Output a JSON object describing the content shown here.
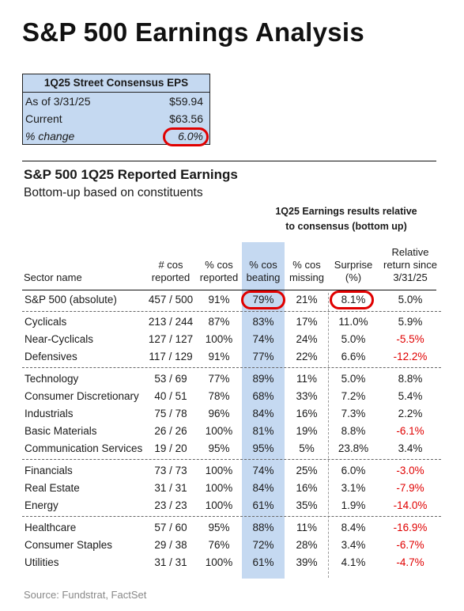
{
  "title": "S&P 500 Earnings Analysis",
  "eps_box": {
    "header": "1Q25 Street Consensus EPS",
    "rows": [
      {
        "label": "As of 3/31/25",
        "value": "$59.94"
      },
      {
        "label": "Current",
        "value": "$63.56"
      },
      {
        "label": "% change",
        "value": "6.0%"
      }
    ]
  },
  "section": {
    "title": "S&P 500 1Q25 Reported Earnings",
    "subtitle": "Bottom-up based on constituents",
    "group_header_line1": "1Q25 Earnings results relative",
    "group_header_line2": "to consensus (bottom up)"
  },
  "columns": {
    "sector": [
      "Sector name"
    ],
    "reported": [
      "# cos",
      "reported"
    ],
    "pct_reported": [
      "% cos",
      "reported"
    ],
    "pct_beating": [
      "% cos",
      "beating"
    ],
    "pct_missing": [
      "% cos",
      "missing"
    ],
    "surprise": [
      "Surprise",
      "(%)"
    ],
    "rel_return": [
      "Relative",
      "return since",
      "3/31/25"
    ]
  },
  "rows": [
    {
      "sector": "S&P 500 (absolute)",
      "reported": "457 / 500",
      "pct_reported": "91%",
      "pct_beating": "79%",
      "pct_missing": "21%",
      "surprise": "8.1%",
      "rel_return": "5.0%"
    },
    {
      "sector": "Cyclicals",
      "reported": "213 / 244",
      "pct_reported": "87%",
      "pct_beating": "83%",
      "pct_missing": "17%",
      "surprise": "11.0%",
      "rel_return": "5.9%"
    },
    {
      "sector": "Near-Cyclicals",
      "reported": "127 / 127",
      "pct_reported": "100%",
      "pct_beating": "74%",
      "pct_missing": "24%",
      "surprise": "5.0%",
      "rel_return": "-5.5%"
    },
    {
      "sector": "Defensives",
      "reported": "117 / 129",
      "pct_reported": "91%",
      "pct_beating": "77%",
      "pct_missing": "22%",
      "surprise": "6.6%",
      "rel_return": "-12.2%"
    },
    {
      "sector": "Technology",
      "reported": "53 / 69",
      "pct_reported": "77%",
      "pct_beating": "89%",
      "pct_missing": "11%",
      "surprise": "5.0%",
      "rel_return": "8.8%"
    },
    {
      "sector": "Consumer Discretionary",
      "reported": "40 / 51",
      "pct_reported": "78%",
      "pct_beating": "68%",
      "pct_missing": "33%",
      "surprise": "7.2%",
      "rel_return": "5.4%"
    },
    {
      "sector": "Industrials",
      "reported": "75 / 78",
      "pct_reported": "96%",
      "pct_beating": "84%",
      "pct_missing": "16%",
      "surprise": "7.3%",
      "rel_return": "2.2%"
    },
    {
      "sector": "Basic Materials",
      "reported": "26 / 26",
      "pct_reported": "100%",
      "pct_beating": "81%",
      "pct_missing": "19%",
      "surprise": "8.8%",
      "rel_return": "-6.1%"
    },
    {
      "sector": "Communication Services",
      "reported": "19 / 20",
      "pct_reported": "95%",
      "pct_beating": "95%",
      "pct_missing": "5%",
      "surprise": "23.8%",
      "rel_return": "3.4%"
    },
    {
      "sector": "Financials",
      "reported": "73 / 73",
      "pct_reported": "100%",
      "pct_beating": "74%",
      "pct_missing": "25%",
      "surprise": "6.0%",
      "rel_return": "-3.0%"
    },
    {
      "sector": "Real Estate",
      "reported": "31 / 31",
      "pct_reported": "100%",
      "pct_beating": "84%",
      "pct_missing": "16%",
      "surprise": "3.1%",
      "rel_return": "-7.9%"
    },
    {
      "sector": "Energy",
      "reported": "23 / 23",
      "pct_reported": "100%",
      "pct_beating": "61%",
      "pct_missing": "35%",
      "surprise": "1.9%",
      "rel_return": "-14.0%"
    },
    {
      "sector": "Healthcare",
      "reported": "57 / 60",
      "pct_reported": "95%",
      "pct_beating": "88%",
      "pct_missing": "11%",
      "surprise": "8.4%",
      "rel_return": "-16.9%"
    },
    {
      "sector": "Consumer Staples",
      "reported": "29 / 38",
      "pct_reported": "76%",
      "pct_beating": "72%",
      "pct_missing": "28%",
      "surprise": "3.4%",
      "rel_return": "-6.7%"
    },
    {
      "sector": "Utilities",
      "reported": "31 / 31",
      "pct_reported": "100%",
      "pct_beating": "61%",
      "pct_missing": "39%",
      "surprise": "4.1%",
      "rel_return": "-4.7%"
    }
  ],
  "colors": {
    "highlight": "#c5d9f1",
    "negative": "#e00000",
    "circle": "#e00000"
  },
  "source": "Source: Fundstrat, FactSet"
}
